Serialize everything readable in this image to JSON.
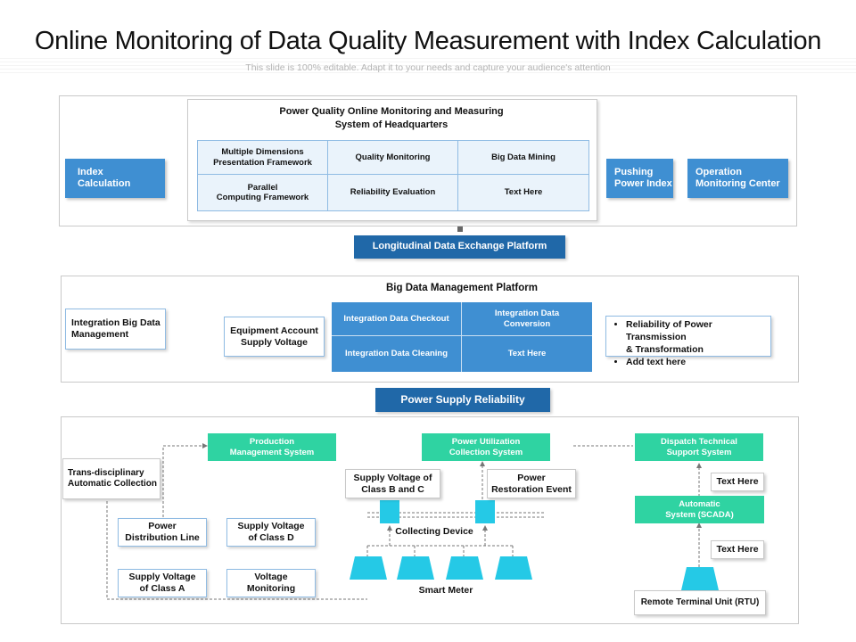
{
  "header": {
    "title": "Online Monitoring of Data Quality Measurement with Index Calculation",
    "subtitle": "This slide is 100% editable. Adapt it to your needs and capture your audience's attention"
  },
  "top": {
    "index_calc": "Index\nCalculation",
    "hq_title": "Power Quality Online Monitoring and Measuring\nSystem of Headquarters",
    "hq_cells": [
      "Multiple Dimensions\nPresentation Framework",
      "Quality Monitoring",
      "Big Data Mining",
      "Parallel\nComputing Framework",
      "Reliability Evaluation",
      "Text Here"
    ],
    "pushing": "Pushing\nPower Index",
    "operation": "Operation\nMonitoring Center"
  },
  "longitudinal": "Longitudinal Data Exchange Platform",
  "middle": {
    "title": "Big Data Management Platform",
    "integration_mgmt": "Integration Big Data\nManagement",
    "equipment": "Equipment Account\nSupply Voltage",
    "cells": [
      "Integration Data Checkout",
      "Integration Data\nConversion",
      "Integration Data Cleaning",
      "Text Here"
    ],
    "bullets": [
      "Reliability of Power Transmission\n& Transformation",
      "Add text here"
    ]
  },
  "power_supply": "Power Supply Reliability",
  "bottom": {
    "production": "Production\nManagement System",
    "utilization": "Power Utilization\nCollection System",
    "dispatch": "Dispatch Technical\nSupport System",
    "trans": "Trans-disciplinary\nAutomatic Collection",
    "supply_bc": "Supply Voltage of\nClass B and C",
    "restoration": "Power\nRestoration Event",
    "text1": "Text Here",
    "scada": "Automatic\nSystem (SCADA)",
    "text2": "Text Here",
    "distribution": "Power\nDistribution Line",
    "supply_d": "Supply Voltage\nof Class D",
    "collecting": "Collecting Device",
    "supply_a": "Supply Voltage\nof Class A",
    "voltage_mon": "Voltage\nMonitoring",
    "smart_meter": "Smart Meter",
    "rtu": "Remote Terminal Unit (RTU)"
  },
  "colors": {
    "blue": "#3f8fd2",
    "dark_blue": "#2068a8",
    "teal": "#2fd3a2",
    "cyan": "#25c9e6",
    "light_cell": "#eaf3fb"
  }
}
